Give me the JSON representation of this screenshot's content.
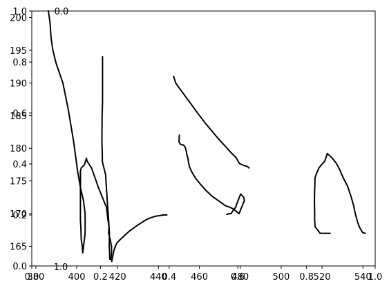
{
  "chart_data": {
    "type": "line",
    "title": "",
    "xlabel": "",
    "ylabel": "",
    "xlim": [
      378,
      546
    ],
    "ylim": [
      162,
      201
    ],
    "grid": false,
    "line_color": "#000000",
    "xticks": [
      380,
      400,
      420,
      440,
      460,
      480,
      500,
      520,
      540
    ],
    "yticks": [
      165,
      170,
      175,
      180,
      185,
      190,
      195,
      200
    ],
    "overlay_ticks": [
      "0.0",
      "0.2",
      "0.4",
      "0.6",
      "0.8",
      "1.0"
    ],
    "overlay_label": "0.0",
    "overlay_corner_label": "1.0",
    "series": [
      {
        "x": [
          386.1,
          386.6,
          387.0,
          387.4,
          388.3,
          389.9,
          393.2,
          395.8,
          398.5,
          400.4,
          401.8,
          403.3,
          404.1,
          404.1,
          402.9,
          402.7,
          402.2,
          402.0,
          401.8,
          401.8,
          401.8,
          402.2,
          403.8,
          404.7,
          405.1,
          407.2,
          409.5,
          410.6,
          411.9,
          413.2,
          414.5,
          414.9,
          415.3,
          415.8,
          415.6,
          416.4,
          417.0,
          417.0,
          416.8,
          416.2,
          415.9,
          416.0,
          415.8,
          415.4,
          414.9,
          414.1,
          413.3,
          412.5,
          412.5,
          412.4,
          412.3
        ],
        "y": [
          201.0,
          200.0,
          199.0,
          197.0,
          195.0,
          193.0,
          190.0,
          186.0,
          181.0,
          176.5,
          174.0,
          172.0,
          170.0,
          167.0,
          164.0,
          165.0,
          166.0,
          168.0,
          169.0,
          172.0,
          176.5,
          177.0,
          177.5,
          178.5,
          178.0,
          177.0,
          175.0,
          174.0,
          173.0,
          172.0,
          171.0,
          170.0,
          169.0,
          168.0,
          167.0,
          166.0,
          165.0,
          164.0,
          163.0,
          163.0,
          165.0,
          167.0,
          168.0,
          170.0,
          172.0,
          176.0,
          177.0,
          178.0,
          179.0,
          180.0,
          181.0
        ]
      },
      {
        "x": [
          412.3,
          412.4,
          412.6,
          412.6,
          412.6,
          412.6,
          412.6,
          412.6,
          412.6
        ],
        "y": [
          181.0,
          185.0,
          187.0,
          189.0,
          190.0,
          191.0,
          192.0,
          193.0,
          194.0
        ]
      },
      {
        "x": [
          447.4,
          448.4,
          449.5,
          453.0,
          456.1,
          458.4,
          463.0,
          468.9,
          475.9,
          477.9,
          479.0,
          479.5,
          481.5,
          483.6,
          484.2
        ],
        "y": [
          191.0,
          190.0,
          189.5,
          188.0,
          186.7,
          185.7,
          183.8,
          181.6,
          179.2,
          178.6,
          178.0,
          177.7,
          177.4,
          177.2,
          177.0
        ]
      },
      {
        "x": [
          450.2,
          450.0,
          450.4,
          450.7,
          452.1,
          452.8,
          453.2,
          453.6,
          453.9,
          454.4,
          454.6,
          455.1,
          456.1,
          457.9,
          460.5,
          463.4,
          466.1,
          469.2,
          472.8,
          474.7,
          476.1,
          477.1,
          477.9,
          478.6,
          479.4,
          480.7,
          482.0,
          481.7,
          480.8,
          480.2,
          478.3,
          477.8,
          476.5,
          475.5,
          474.7,
          473.5
        ],
        "y": [
          182.0,
          181.0,
          180.8,
          180.6,
          180.5,
          180.3,
          180.0,
          179.5,
          179.0,
          178.5,
          178.0,
          177.2,
          176.5,
          175.5,
          174.5,
          173.5,
          172.7,
          172.0,
          171.2,
          171.0,
          170.8,
          170.6,
          170.4,
          170.2,
          170.0,
          171.0,
          172.0,
          172.5,
          172.8,
          173.0,
          171.5,
          171.0,
          170.5,
          170.0,
          170.0,
          169.9
        ]
      },
      {
        "x": [
          523.9,
          519.1,
          516.6,
          516.4,
          516.4,
          516.3,
          516.4,
          516.6,
          517.1,
          518.5,
          519.8,
          521.3,
          522.4,
          522.5,
          523.3,
          525.0,
          527.0,
          528.7,
          530.3,
          532.5,
          534.2,
          535.5,
          536.0,
          536.6,
          537.3,
          538.1,
          538.9,
          539.3,
          539.9,
          541.1
        ],
        "y": [
          167.0,
          167.0,
          168.0,
          169.0,
          170.2,
          172.0,
          173.5,
          175.5,
          176.0,
          177.0,
          177.5,
          178.0,
          179.0,
          179.2,
          179.0,
          178.5,
          177.7,
          176.7,
          175.5,
          174.2,
          172.6,
          171.2,
          170.4,
          169.6,
          168.8,
          168.1,
          167.6,
          167.4,
          167.1,
          167.0
        ]
      },
      {
        "x": [
          417.1,
          417.6,
          418.2,
          418.9,
          419.6,
          421.1,
          423.2,
          426.0,
          429.6,
          432.1,
          434.1,
          436.4,
          438.4,
          440.9,
          442.0,
          443.2,
          444.0
        ],
        "y": [
          162.7,
          163.5,
          164.4,
          165.0,
          165.5,
          166.0,
          166.6,
          167.4,
          168.2,
          168.7,
          169.1,
          169.4,
          169.6,
          169.7,
          169.8,
          169.8,
          169.8
        ]
      }
    ]
  }
}
